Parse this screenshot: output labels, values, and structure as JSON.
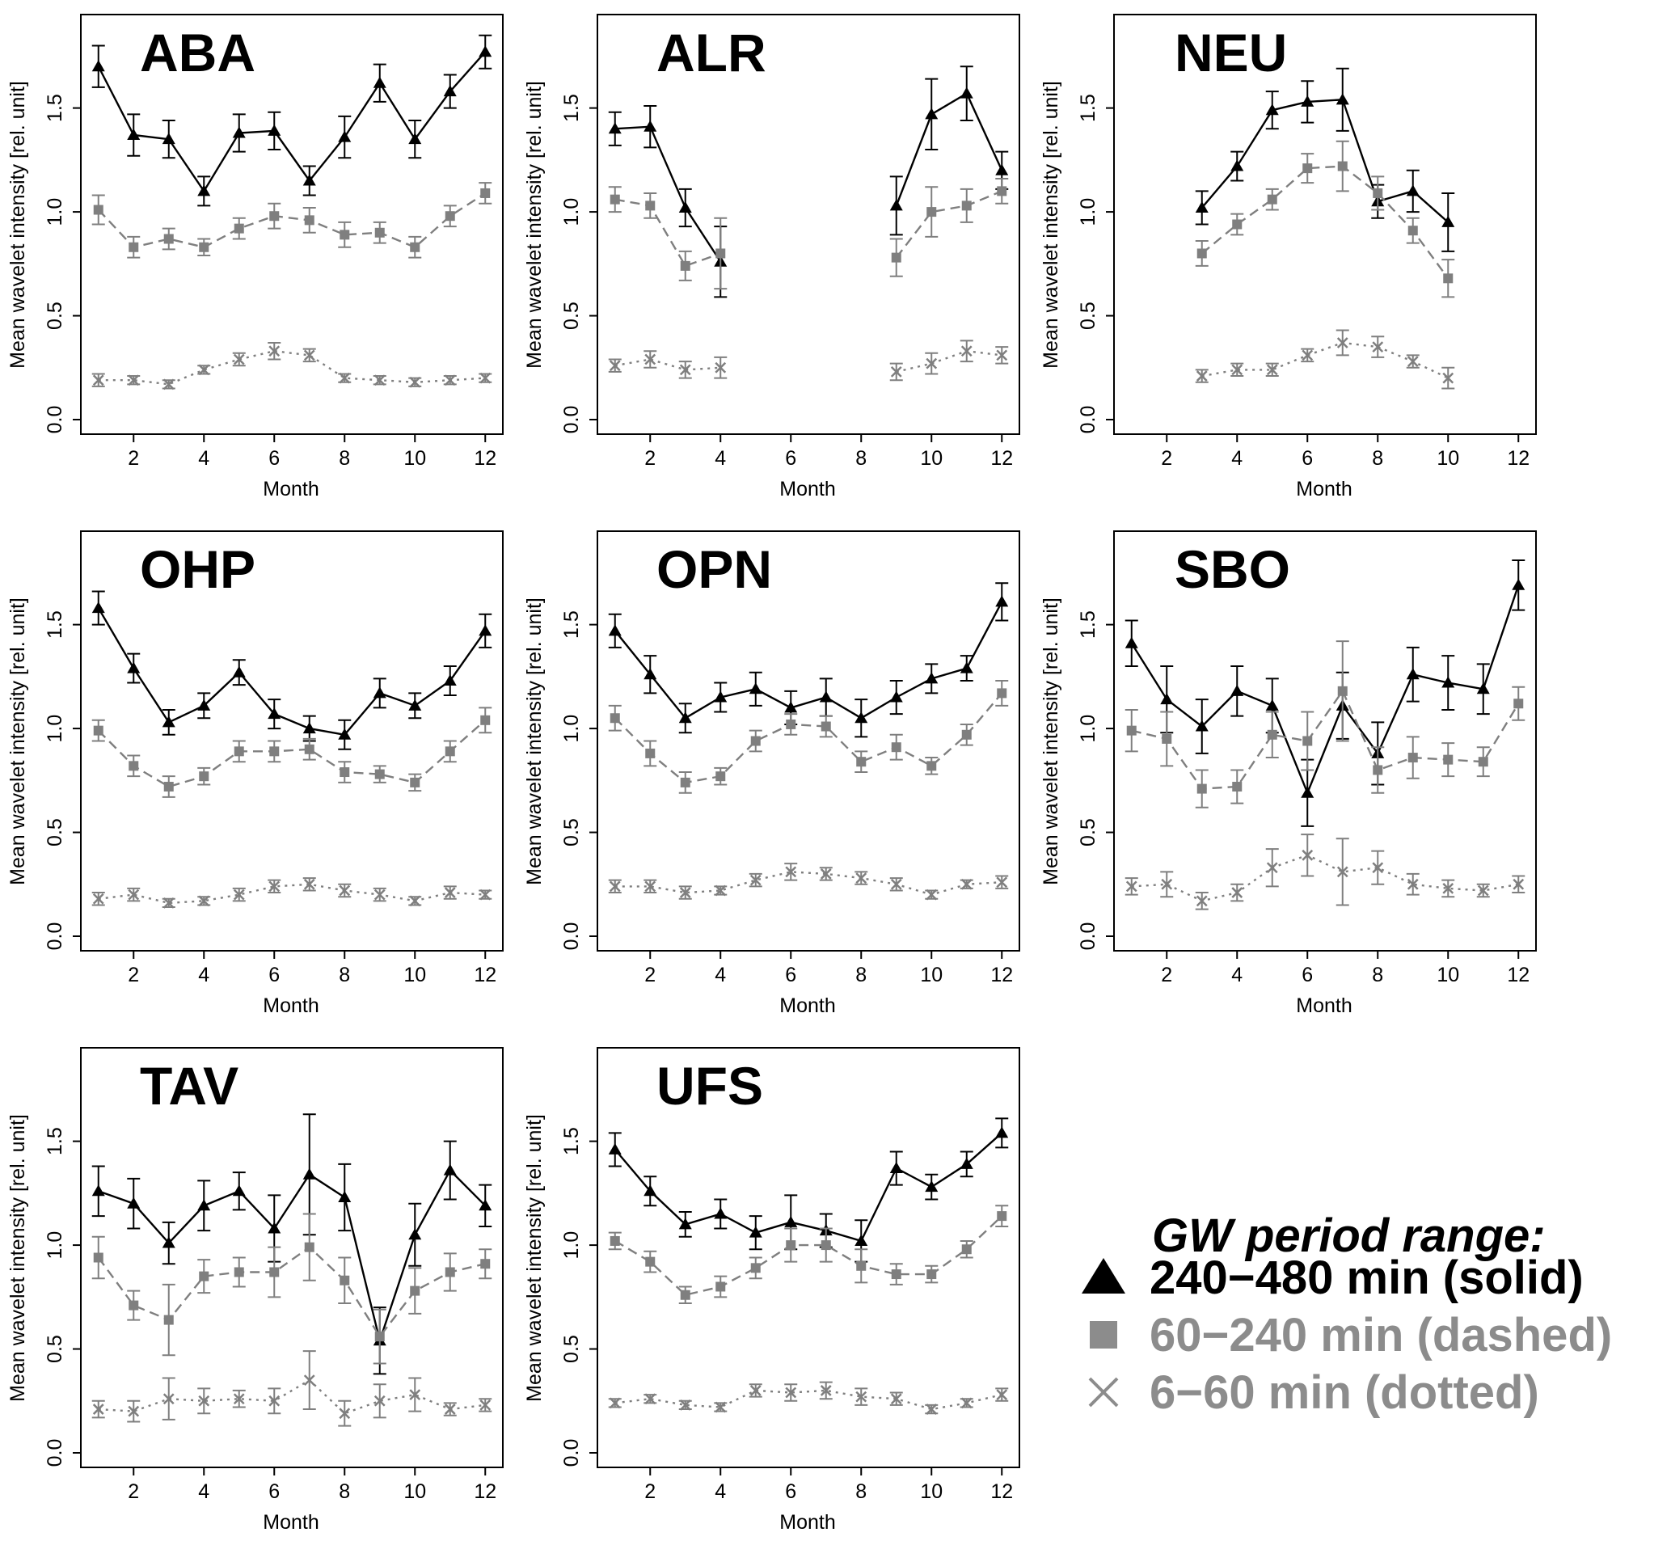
{
  "chart_data": {
    "type": "line",
    "x_label": "Month",
    "y_label": "Mean wavelet intensity [rel. unit]",
    "x_ticks": [
      "2",
      "4",
      "6",
      "8",
      "10",
      "12"
    ],
    "y_ticks": [
      "0.0",
      "0.5",
      "1.0",
      "1.5"
    ],
    "xlim": [
      0.5,
      12.5
    ],
    "ylim": [
      -0.07,
      1.95
    ],
    "colors": {
      "long": "#000000",
      "medium": "#7f7f7f",
      "short": "#7f7f7f"
    },
    "legend": {
      "title": "GW period range:",
      "entries": [
        {
          "key": "long",
          "marker": "triangle",
          "label": "240−480 min (solid)",
          "color": "#000000"
        },
        {
          "key": "medium",
          "marker": "square",
          "label": "60−240 min (dashed)",
          "color": "#8c8c8c"
        },
        {
          "key": "short",
          "marker": "cross",
          "label": "6−60 min (dotted)",
          "color": "#8c8c8c"
        }
      ]
    },
    "panels": [
      {
        "title": "ABA",
        "series": [
          {
            "key": "long",
            "values": [
              1.7,
              1.37,
              1.35,
              1.1,
              1.38,
              1.39,
              1.15,
              1.36,
              1.62,
              1.35,
              1.58,
              1.77
            ],
            "errors": [
              0.1,
              0.1,
              0.09,
              0.07,
              0.09,
              0.09,
              0.07,
              0.1,
              0.09,
              0.09,
              0.08,
              0.08
            ]
          },
          {
            "key": "medium",
            "values": [
              1.01,
              0.83,
              0.87,
              0.83,
              0.92,
              0.98,
              0.96,
              0.89,
              0.9,
              0.83,
              0.98,
              1.09
            ],
            "errors": [
              0.07,
              0.05,
              0.05,
              0.04,
              0.05,
              0.06,
              0.06,
              0.06,
              0.05,
              0.05,
              0.05,
              0.05
            ]
          },
          {
            "key": "short",
            "values": [
              0.19,
              0.19,
              0.17,
              0.24,
              0.29,
              0.33,
              0.31,
              0.2,
              0.19,
              0.18,
              0.19,
              0.2
            ],
            "errors": [
              0.03,
              0.02,
              0.02,
              0.02,
              0.03,
              0.04,
              0.03,
              0.02,
              0.02,
              0.02,
              0.02,
              0.02
            ]
          }
        ]
      },
      {
        "title": "ALR",
        "series": [
          {
            "key": "long",
            "values": [
              1.4,
              1.41,
              1.02,
              0.76,
              null,
              null,
              null,
              null,
              1.03,
              1.47,
              1.57,
              1.2
            ],
            "errors": [
              0.08,
              0.1,
              0.09,
              0.17,
              null,
              null,
              null,
              null,
              0.14,
              0.17,
              0.13,
              0.09
            ]
          },
          {
            "key": "medium",
            "values": [
              1.06,
              1.03,
              0.74,
              0.8,
              null,
              null,
              null,
              null,
              0.78,
              1.0,
              1.03,
              1.1
            ],
            "errors": [
              0.06,
              0.06,
              0.07,
              0.17,
              null,
              null,
              null,
              null,
              0.09,
              0.12,
              0.08,
              0.06
            ]
          },
          {
            "key": "short",
            "values": [
              0.26,
              0.29,
              0.24,
              0.25,
              null,
              null,
              null,
              null,
              0.23,
              0.27,
              0.33,
              0.31
            ],
            "errors": [
              0.03,
              0.04,
              0.04,
              0.05,
              null,
              null,
              null,
              null,
              0.04,
              0.05,
              0.05,
              0.04
            ]
          }
        ]
      },
      {
        "title": "NEU",
        "series": [
          {
            "key": "long",
            "values": [
              null,
              null,
              1.02,
              1.22,
              1.49,
              1.53,
              1.54,
              1.05,
              1.1,
              0.95
            ],
            "errors": [
              null,
              null,
              0.08,
              0.07,
              0.09,
              0.1,
              0.15,
              0.08,
              0.1,
              0.14
            ]
          },
          {
            "key": "medium",
            "values": [
              null,
              null,
              0.8,
              0.94,
              1.06,
              1.21,
              1.22,
              1.09,
              0.91,
              0.68
            ],
            "errors": [
              null,
              null,
              0.06,
              0.05,
              0.05,
              0.07,
              0.12,
              0.08,
              0.06,
              0.09
            ]
          },
          {
            "key": "short",
            "values": [
              null,
              null,
              0.21,
              0.24,
              0.24,
              0.31,
              0.37,
              0.35,
              0.28,
              0.2
            ],
            "errors": [
              null,
              null,
              0.03,
              0.03,
              0.03,
              0.03,
              0.06,
              0.05,
              0.03,
              0.05
            ]
          }
        ]
      },
      {
        "title": "OHP",
        "series": [
          {
            "key": "long",
            "values": [
              1.58,
              1.29,
              1.03,
              1.11,
              1.27,
              1.07,
              1.0,
              0.97,
              1.17,
              1.11,
              1.23,
              1.47
            ],
            "errors": [
              0.08,
              0.07,
              0.06,
              0.06,
              0.06,
              0.07,
              0.06,
              0.07,
              0.07,
              0.06,
              0.07,
              0.08
            ]
          },
          {
            "key": "medium",
            "values": [
              0.99,
              0.82,
              0.72,
              0.77,
              0.89,
              0.89,
              0.9,
              0.79,
              0.78,
              0.74,
              0.89,
              1.04
            ],
            "errors": [
              0.05,
              0.05,
              0.05,
              0.04,
              0.05,
              0.05,
              0.05,
              0.05,
              0.04,
              0.04,
              0.05,
              0.06
            ]
          },
          {
            "key": "short",
            "values": [
              0.18,
              0.2,
              0.16,
              0.17,
              0.2,
              0.24,
              0.25,
              0.22,
              0.2,
              0.17,
              0.21,
              0.2
            ],
            "errors": [
              0.03,
              0.03,
              0.02,
              0.02,
              0.03,
              0.03,
              0.03,
              0.03,
              0.03,
              0.02,
              0.03,
              0.02
            ]
          }
        ]
      },
      {
        "title": "OPN",
        "series": [
          {
            "key": "long",
            "values": [
              1.47,
              1.26,
              1.05,
              1.15,
              1.19,
              1.1,
              1.15,
              1.05,
              1.15,
              1.24,
              1.29,
              1.61
            ],
            "errors": [
              0.08,
              0.09,
              0.07,
              0.07,
              0.08,
              0.08,
              0.09,
              0.09,
              0.08,
              0.07,
              0.06,
              0.09
            ]
          },
          {
            "key": "medium",
            "values": [
              1.05,
              0.88,
              0.74,
              0.77,
              0.94,
              1.02,
              1.01,
              0.84,
              0.91,
              0.82,
              0.97,
              1.17
            ],
            "errors": [
              0.06,
              0.06,
              0.05,
              0.04,
              0.05,
              0.05,
              0.05,
              0.05,
              0.06,
              0.04,
              0.05,
              0.06
            ]
          },
          {
            "key": "short",
            "values": [
              0.24,
              0.24,
              0.21,
              0.22,
              0.27,
              0.31,
              0.3,
              0.28,
              0.25,
              0.2,
              0.25,
              0.26
            ],
            "errors": [
              0.03,
              0.03,
              0.03,
              0.02,
              0.03,
              0.04,
              0.03,
              0.03,
              0.03,
              0.02,
              0.02,
              0.03
            ]
          }
        ]
      },
      {
        "title": "SBO",
        "series": [
          {
            "key": "long",
            "values": [
              1.41,
              1.14,
              1.01,
              1.18,
              1.11,
              0.69,
              1.11,
              0.88,
              1.26,
              1.22,
              1.19,
              1.69
            ],
            "errors": [
              0.11,
              0.16,
              0.13,
              0.12,
              0.13,
              0.16,
              0.16,
              0.15,
              0.13,
              0.13,
              0.12,
              0.12
            ]
          },
          {
            "key": "medium",
            "values": [
              0.99,
              0.95,
              0.71,
              0.72,
              0.97,
              0.94,
              1.18,
              0.8,
              0.86,
              0.85,
              0.84,
              1.12
            ],
            "errors": [
              0.1,
              0.13,
              0.09,
              0.08,
              0.11,
              0.14,
              0.24,
              0.11,
              0.1,
              0.08,
              0.07,
              0.08
            ]
          },
          {
            "key": "short",
            "values": [
              0.24,
              0.25,
              0.17,
              0.21,
              0.33,
              0.39,
              0.31,
              0.33,
              0.25,
              0.23,
              0.22,
              0.25
            ],
            "errors": [
              0.04,
              0.06,
              0.04,
              0.04,
              0.09,
              0.1,
              0.16,
              0.08,
              0.05,
              0.04,
              0.03,
              0.04
            ]
          }
        ]
      },
      {
        "title": "TAV",
        "series": [
          {
            "key": "long",
            "values": [
              1.26,
              1.2,
              1.01,
              1.19,
              1.26,
              1.08,
              1.34,
              1.23,
              0.54,
              1.05,
              1.36,
              1.19
            ],
            "errors": [
              0.12,
              0.12,
              0.1,
              0.12,
              0.09,
              0.16,
              0.29,
              0.16,
              0.16,
              0.15,
              0.14,
              0.1
            ]
          },
          {
            "key": "medium",
            "values": [
              0.94,
              0.71,
              0.64,
              0.85,
              0.87,
              0.87,
              0.99,
              0.83,
              0.56,
              0.78,
              0.87,
              0.91
            ],
            "errors": [
              0.1,
              0.07,
              0.17,
              0.08,
              0.07,
              0.12,
              0.16,
              0.11,
              0.13,
              0.11,
              0.09,
              0.07
            ]
          },
          {
            "key": "short",
            "values": [
              0.21,
              0.2,
              0.26,
              0.25,
              0.26,
              0.25,
              0.35,
              0.19,
              0.25,
              0.28,
              0.21,
              0.23
            ],
            "errors": [
              0.04,
              0.05,
              0.1,
              0.06,
              0.04,
              0.06,
              0.14,
              0.06,
              0.08,
              0.08,
              0.03,
              0.03
            ]
          }
        ]
      },
      {
        "title": "UFS",
        "series": [
          {
            "key": "long",
            "values": [
              1.46,
              1.26,
              1.1,
              1.15,
              1.06,
              1.11,
              1.07,
              1.02,
              1.37,
              1.28,
              1.39,
              1.54
            ],
            "errors": [
              0.08,
              0.07,
              0.06,
              0.07,
              0.08,
              0.13,
              0.08,
              0.1,
              0.08,
              0.06,
              0.06,
              0.07
            ]
          },
          {
            "key": "medium",
            "values": [
              1.02,
              0.92,
              0.76,
              0.8,
              0.89,
              1.0,
              1.0,
              0.9,
              0.86,
              0.86,
              0.98,
              1.14
            ],
            "errors": [
              0.04,
              0.05,
              0.04,
              0.05,
              0.05,
              0.08,
              0.08,
              0.08,
              0.05,
              0.04,
              0.04,
              0.05
            ]
          },
          {
            "key": "short",
            "values": [
              0.24,
              0.26,
              0.23,
              0.22,
              0.3,
              0.29,
              0.3,
              0.27,
              0.26,
              0.21,
              0.24,
              0.28
            ],
            "errors": [
              0.02,
              0.02,
              0.02,
              0.02,
              0.03,
              0.04,
              0.04,
              0.04,
              0.03,
              0.02,
              0.02,
              0.03
            ]
          }
        ]
      }
    ]
  }
}
